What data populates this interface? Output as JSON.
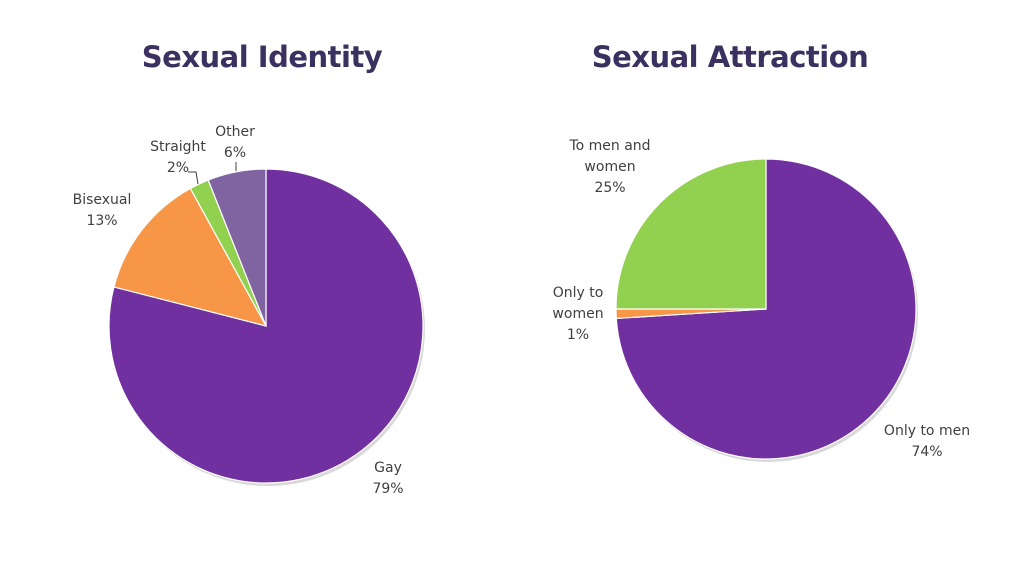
{
  "colors": {
    "title": "#3b3160",
    "label": "#404040"
  },
  "chart_data": [
    {
      "type": "pie",
      "title": "Sexual Identity",
      "start_angle_deg": 0,
      "slices": [
        {
          "label": "Gay",
          "value": 79,
          "display": "79%",
          "color": "#7030a0"
        },
        {
          "label": "Bisexual",
          "value": 13,
          "display": "13%",
          "color": "#f79646"
        },
        {
          "label": "Straight",
          "value": 2,
          "display": "2%",
          "color": "#92d050"
        },
        {
          "label": "Other",
          "value": 6,
          "display": "6%",
          "color": "#8064a2"
        }
      ]
    },
    {
      "type": "pie",
      "title": "Sexual Attraction",
      "start_angle_deg": 0,
      "slices": [
        {
          "label": "Only to men",
          "value": 74,
          "display": "74%",
          "color": "#7030a0"
        },
        {
          "label": "Only to women",
          "value": 1,
          "display": "1%",
          "color": "#f79646"
        },
        {
          "label": "To men and women",
          "value": 25,
          "display": "25%",
          "color": "#92d050"
        }
      ]
    }
  ]
}
